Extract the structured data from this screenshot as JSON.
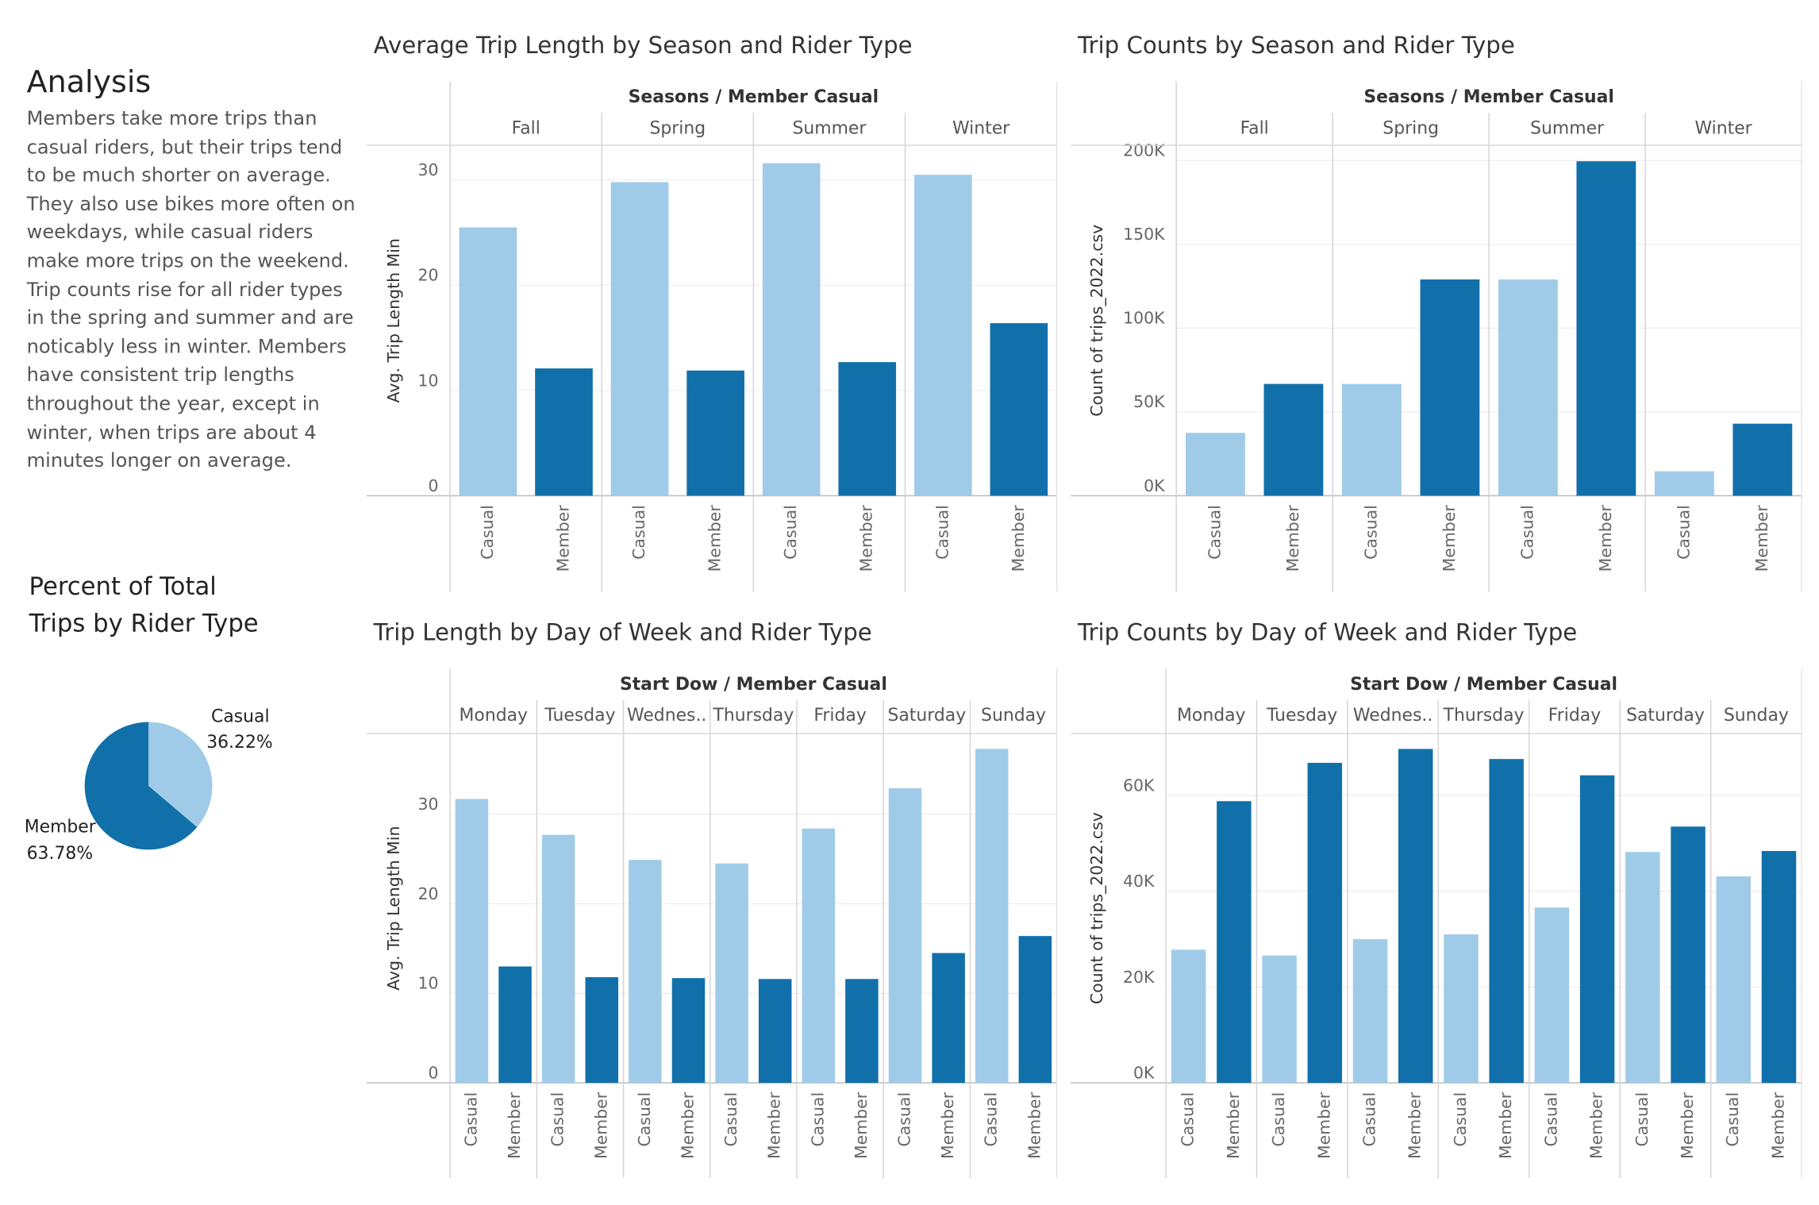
{
  "analysis": {
    "title": "Analysis",
    "text": "Members take more trips than casual riders, but their trips tend to be much shorter on average. They also use bikes more often on weekdays, while casual riders make more trips on the weekend. Trip counts rise for all rider types in the spring and summer and are noticably less in winter. Members have consistent trip lengths throughout the year, except in winter, when trips are about 4 minutes longer on average."
  },
  "chart_data": [
    {
      "type": "bar",
      "title": "Average Trip Length by Season and Rider Type",
      "header": "Seasons / Member Casual",
      "categories": [
        "Fall",
        "Spring",
        "Summer",
        "Winter"
      ],
      "y_label": "Avg. Trip Length Min",
      "series": [
        {
          "name": "Casual",
          "color": "#a0cbe8",
          "values": [
            25.5,
            29.8,
            31.6,
            30.5
          ]
        },
        {
          "name": "Member",
          "color": "#1170aa",
          "values": [
            12.1,
            11.9,
            12.7,
            16.4
          ]
        }
      ],
      "ylim": [
        0,
        33.3
      ],
      "yticks": [
        0,
        10,
        20,
        30
      ],
      "grid": true
    },
    {
      "type": "bar",
      "title": "Trip Counts by Season and Rider Type",
      "header": "Seasons / Member Casual",
      "categories": [
        "Fall",
        "Spring",
        "Summer",
        "Winter"
      ],
      "y_label": "Count of trips_2022.csv",
      "series": [
        {
          "name": "Casual",
          "color": "#a0cbe8",
          "values": [
            37500,
            66700,
            129000,
            14600
          ]
        },
        {
          "name": "Member",
          "color": "#1170aa",
          "values": [
            66700,
            129000,
            199500,
            43000
          ]
        }
      ],
      "ylim": [
        0,
        209000
      ],
      "yticks": [
        {
          "value": 0,
          "label": "0K"
        },
        {
          "value": 50000,
          "label": "50K"
        },
        {
          "value": 100000,
          "label": "100K"
        },
        {
          "value": 150000,
          "label": "150K"
        },
        {
          "value": 200000,
          "label": "200K"
        }
      ],
      "grid": true
    },
    {
      "type": "bar",
      "title": "Trip Length by Day of Week and Rider Type",
      "header": "Start Dow / Member Casual",
      "categories": [
        "Monday",
        "Tuesday",
        "Wednes..",
        "Thursday",
        "Friday",
        "Saturday",
        "Sunday"
      ],
      "y_label": "Avg. Trip Length Min",
      "series": [
        {
          "name": "Casual",
          "color": "#a0cbe8",
          "values": [
            31.7,
            27.7,
            24.9,
            24.5,
            28.4,
            32.9,
            37.3
          ]
        },
        {
          "name": "Member",
          "color": "#1170aa",
          "values": [
            13.0,
            11.8,
            11.7,
            11.6,
            11.6,
            14.5,
            16.4
          ]
        }
      ],
      "ylim": [
        0,
        39
      ],
      "yticks": [
        0,
        10,
        20,
        30
      ],
      "grid": true
    },
    {
      "type": "bar",
      "title": "Trip Counts by Day of Week and Rider Type",
      "header": "Start Dow / Member Casual",
      "categories": [
        "Monday",
        "Tuesday",
        "Wednes..",
        "Thursday",
        "Friday",
        "Saturday",
        "Sunday"
      ],
      "y_label": "Count of trips_2022.csv",
      "series": [
        {
          "name": "Casual",
          "color": "#a0cbe8",
          "values": [
            27800,
            26600,
            30000,
            31000,
            36600,
            48200,
            43100
          ]
        },
        {
          "name": "Member",
          "color": "#1170aa",
          "values": [
            58800,
            66800,
            69700,
            67600,
            64200,
            53500,
            48400
          ]
        }
      ],
      "ylim": [
        0,
        72900
      ],
      "yticks": [
        {
          "value": 0,
          "label": "0K"
        },
        {
          "value": 20000,
          "label": "20K"
        },
        {
          "value": 40000,
          "label": "40K"
        },
        {
          "value": 60000,
          "label": "60K"
        }
      ],
      "grid": true
    },
    {
      "type": "pie",
      "title": "Percent of Total Trips by Rider Type",
      "categories": [
        "Casual",
        "Member"
      ],
      "values": [
        36.22,
        63.78
      ],
      "value_labels": [
        "36.22%",
        "63.78%"
      ],
      "colors": [
        "#a0cbe8",
        "#1170aa"
      ]
    }
  ]
}
